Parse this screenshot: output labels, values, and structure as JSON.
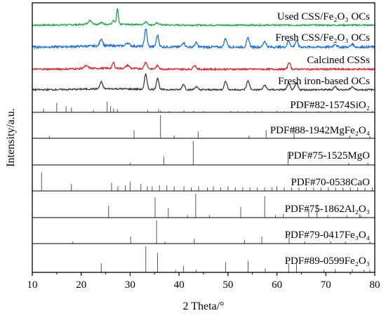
{
  "chart_data": {
    "type": "line",
    "xlabel": "2 Theta/°",
    "ylabel": "Intensity/a.u.",
    "xlim": [
      10,
      80
    ],
    "xticks": [
      10,
      20,
      30,
      40,
      50,
      60,
      70,
      80
    ],
    "grid": false,
    "legend": "inline labels above each curve",
    "series": [
      {
        "name": "Used CSS/Fe₂O₃ OCs",
        "color": "#1aa64a",
        "baseline": 0.1,
        "peaks": [
          [
            27.4,
            1.0,
            0.25
          ],
          [
            26.6,
            0.22,
            0.3
          ],
          [
            21.8,
            0.25,
            0.6
          ],
          [
            33.2,
            0.18,
            0.5
          ],
          [
            35.6,
            0.12,
            0.5
          ],
          [
            24.1,
            0.1,
            0.5
          ]
        ]
      },
      {
        "name": "Fresh CSS/Fe₂O₃ OCs",
        "color": "#1a6fd6",
        "baseline": 0.1,
        "peaks": [
          [
            33.2,
            0.85,
            0.35
          ],
          [
            35.6,
            0.55,
            0.35
          ],
          [
            24.1,
            0.35,
            0.4
          ],
          [
            40.9,
            0.22,
            0.4
          ],
          [
            49.5,
            0.4,
            0.4
          ],
          [
            54.1,
            0.42,
            0.4
          ],
          [
            57.5,
            0.28,
            0.4
          ],
          [
            62.4,
            0.3,
            0.4
          ],
          [
            64.0,
            0.3,
            0.4
          ],
          [
            29.5,
            0.15,
            0.5
          ],
          [
            43.5,
            0.2,
            0.4
          ],
          [
            71.9,
            0.15,
            0.4
          ],
          [
            75.4,
            0.15,
            0.4
          ]
        ]
      },
      {
        "name": "Calcined CSSs",
        "color": "#e0232a",
        "baseline": 0.1,
        "peaks": [
          [
            26.6,
            0.35,
            0.3
          ],
          [
            33.2,
            0.4,
            0.4
          ],
          [
            35.6,
            0.2,
            0.4
          ],
          [
            62.5,
            0.42,
            0.35
          ],
          [
            43.2,
            0.25,
            0.4
          ],
          [
            21.0,
            0.15,
            0.6
          ],
          [
            29.5,
            0.18,
            0.5
          ]
        ]
      },
      {
        "name": "Fresh iron-based OCs",
        "color": "#3a3a3a",
        "baseline": 0.1,
        "peaks": [
          [
            33.2,
            1.0,
            0.35
          ],
          [
            35.6,
            0.75,
            0.35
          ],
          [
            24.1,
            0.45,
            0.4
          ],
          [
            40.9,
            0.35,
            0.4
          ],
          [
            49.5,
            0.55,
            0.4
          ],
          [
            54.1,
            0.58,
            0.4
          ],
          [
            57.5,
            0.3,
            0.4
          ],
          [
            62.4,
            0.4,
            0.4
          ],
          [
            64.0,
            0.42,
            0.4
          ],
          [
            43.5,
            0.2,
            0.4
          ],
          [
            71.9,
            0.2,
            0.4
          ],
          [
            75.4,
            0.2,
            0.4
          ]
        ]
      }
    ],
    "reference_panels": [
      {
        "label": "PDF#82-1574SiO₂",
        "lines": [
          [
            12.3,
            0.3
          ],
          [
            15.0,
            0.8
          ],
          [
            16.9,
            0.5
          ],
          [
            18.0,
            0.4
          ],
          [
            22.5,
            0.2
          ],
          [
            25.3,
            0.9
          ],
          [
            26.0,
            0.5
          ],
          [
            26.6,
            0.3
          ],
          [
            27.4,
            0.25
          ],
          [
            33.6,
            0.2
          ],
          [
            35.8,
            0.25
          ],
          [
            36.2,
            0.15
          ],
          [
            38.0,
            0.1
          ],
          [
            41.0,
            0.15
          ],
          [
            43.0,
            0.12
          ],
          [
            45.0,
            0.1
          ],
          [
            50.5,
            0.12
          ],
          [
            52.0,
            0.1
          ],
          [
            54.0,
            0.1
          ],
          [
            55.5,
            0.1
          ],
          [
            57.0,
            0.1
          ],
          [
            60.0,
            0.12
          ],
          [
            61.5,
            0.1
          ],
          [
            63.0,
            0.1
          ],
          [
            66.0,
            0.1
          ],
          [
            68.5,
            0.1
          ],
          [
            71.0,
            0.1
          ],
          [
            72.5,
            0.1
          ],
          [
            74.0,
            0.1
          ],
          [
            76.0,
            0.1
          ],
          [
            78.0,
            0.1
          ],
          [
            79.5,
            0.1
          ]
        ]
      },
      {
        "label": "PDF#88-1942MgFe₂O₄",
        "lines": [
          [
            13.5,
            0.1
          ],
          [
            30.8,
            0.35
          ],
          [
            36.2,
            1.0
          ],
          [
            39.0,
            0.12
          ],
          [
            43.9,
            0.3
          ],
          [
            54.3,
            0.12
          ],
          [
            57.8,
            0.35
          ],
          [
            63.5,
            0.5
          ],
          [
            74.9,
            0.12
          ],
          [
            79.0,
            0.1
          ]
        ]
      },
      {
        "label": "PDF#75-1525MgO",
        "lines": [
          [
            30.0,
            0.1
          ],
          [
            36.9,
            0.35
          ],
          [
            42.9,
            1.0
          ],
          [
            62.3,
            0.55
          ],
          [
            74.7,
            0.1
          ],
          [
            78.6,
            0.1
          ]
        ]
      },
      {
        "label": "PDF#70-0538CaO",
        "lines": [
          [
            11.9,
            0.8
          ],
          [
            18.0,
            0.3
          ],
          [
            26.2,
            0.35
          ],
          [
            27.5,
            0.2
          ],
          [
            29.0,
            0.25
          ],
          [
            30.0,
            0.4
          ],
          [
            32.2,
            0.3
          ],
          [
            33.5,
            0.2
          ],
          [
            34.5,
            0.2
          ],
          [
            36.0,
            0.25
          ],
          [
            37.5,
            0.25
          ],
          [
            39.0,
            0.2
          ],
          [
            41.0,
            0.2
          ],
          [
            42.5,
            0.15
          ],
          [
            44.0,
            0.2
          ],
          [
            45.8,
            0.15
          ],
          [
            47.0,
            0.2
          ],
          [
            48.5,
            0.15
          ],
          [
            50.0,
            0.2
          ],
          [
            51.5,
            0.15
          ],
          [
            53.0,
            0.15
          ],
          [
            54.5,
            0.15
          ],
          [
            56.0,
            0.15
          ],
          [
            57.5,
            0.15
          ],
          [
            59.0,
            0.15
          ],
          [
            60.0,
            0.2
          ],
          [
            61.5,
            0.15
          ],
          [
            63.0,
            0.15
          ],
          [
            64.5,
            0.15
          ],
          [
            66.0,
            0.15
          ],
          [
            67.5,
            0.15
          ],
          [
            69.0,
            0.15
          ],
          [
            70.5,
            0.15
          ],
          [
            72.0,
            0.15
          ],
          [
            73.5,
            0.15
          ],
          [
            75.0,
            0.15
          ],
          [
            76.5,
            0.15
          ],
          [
            78.0,
            0.15
          ],
          [
            79.5,
            0.15
          ]
        ]
      },
      {
        "label": "PDF#75-1862Al₂O₃",
        "lines": [
          [
            25.6,
            0.5
          ],
          [
            35.1,
            0.85
          ],
          [
            37.8,
            0.4
          ],
          [
            41.7,
            0.1
          ],
          [
            43.4,
            1.0
          ],
          [
            46.2,
            0.1
          ],
          [
            52.6,
            0.45
          ],
          [
            57.5,
            0.9
          ],
          [
            59.7,
            0.1
          ],
          [
            61.3,
            0.15
          ],
          [
            66.5,
            0.35
          ],
          [
            68.2,
            0.55
          ],
          [
            70.4,
            0.1
          ],
          [
            74.3,
            0.1
          ],
          [
            76.9,
            0.15
          ],
          [
            77.2,
            0.1
          ]
        ]
      },
      {
        "label": "PDF#79-0417Fe₃O₄",
        "lines": [
          [
            18.3,
            0.1
          ],
          [
            30.1,
            0.3
          ],
          [
            35.4,
            1.0
          ],
          [
            37.1,
            0.1
          ],
          [
            43.1,
            0.2
          ],
          [
            53.4,
            0.15
          ],
          [
            56.9,
            0.3
          ],
          [
            62.5,
            0.4
          ],
          [
            65.7,
            0.1
          ],
          [
            71.0,
            0.1
          ],
          [
            74.0,
            0.1
          ],
          [
            79.0,
            0.1
          ]
        ]
      },
      {
        "label": "PDF#89-0599Fe₂O₃",
        "lines": [
          [
            24.1,
            0.35
          ],
          [
            33.2,
            1.0
          ],
          [
            35.6,
            0.75
          ],
          [
            39.3,
            0.1
          ],
          [
            40.9,
            0.25
          ],
          [
            43.5,
            0.1
          ],
          [
            49.5,
            0.4
          ],
          [
            54.1,
            0.45
          ],
          [
            57.6,
            0.15
          ],
          [
            62.4,
            0.35
          ],
          [
            64.0,
            0.35
          ],
          [
            69.6,
            0.1
          ],
          [
            71.9,
            0.12
          ],
          [
            75.4,
            0.12
          ],
          [
            77.8,
            0.1
          ],
          [
            79.0,
            0.1
          ]
        ]
      }
    ]
  }
}
